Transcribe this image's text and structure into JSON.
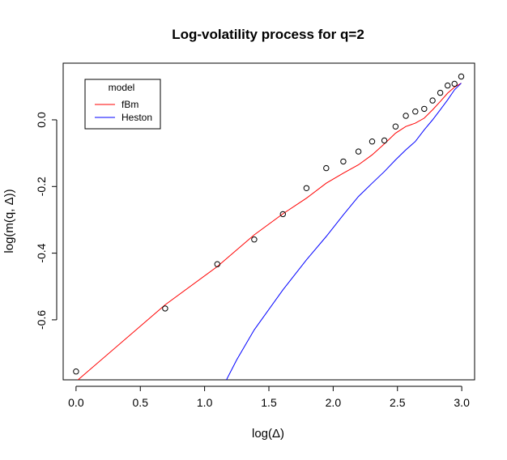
{
  "chart_data": {
    "type": "line",
    "title": "Log-volatility process for q=2",
    "xlabel": "log(Δ)",
    "ylabel": "log(m(q, Δ))",
    "xlim": [
      -0.1,
      3.1
    ],
    "ylim": [
      -0.78,
      0.17
    ],
    "xticks": [
      0.0,
      0.5,
      1.0,
      1.5,
      2.0,
      2.5,
      3.0
    ],
    "xtick_labels": [
      "0.0",
      "0.5",
      "1.0",
      "1.5",
      "2.0",
      "2.5",
      "3.0"
    ],
    "yticks": [
      -0.6,
      -0.4,
      -0.2,
      0.0
    ],
    "ytick_labels": [
      "-0.6",
      "-0.4",
      "-0.2",
      "0.0"
    ],
    "grid": false,
    "legend": {
      "title": "model",
      "position": "top-left",
      "entries": [
        {
          "label": "fBm",
          "color": "#ff0000"
        },
        {
          "label": "Heston",
          "color": "#0000ff"
        }
      ]
    },
    "points": {
      "x": [
        0.0,
        0.693,
        1.099,
        1.386,
        1.609,
        1.792,
        1.946,
        2.079,
        2.197,
        2.303,
        2.398,
        2.485,
        2.565,
        2.639,
        2.708,
        2.773,
        2.833,
        2.89,
        2.944,
        2.996
      ],
      "y": [
        -0.755,
        -0.566,
        -0.433,
        -0.359,
        -0.283,
        -0.205,
        -0.145,
        -0.125,
        -0.095,
        -0.065,
        -0.062,
        -0.02,
        0.012,
        0.025,
        0.033,
        0.058,
        0.081,
        0.103,
        0.108,
        0.13
      ]
    },
    "series": [
      {
        "name": "fBm",
        "color": "#ff0000",
        "x": [
          0.0,
          0.693,
          1.099,
          1.386,
          1.609,
          1.792,
          1.946,
          2.079,
          2.197,
          2.303,
          2.398,
          2.485,
          2.565,
          2.639,
          2.708,
          2.773,
          2.833,
          2.89,
          2.944,
          2.996
        ],
        "y": [
          -0.785,
          -0.555,
          -0.44,
          -0.345,
          -0.282,
          -0.235,
          -0.19,
          -0.16,
          -0.135,
          -0.105,
          -0.072,
          -0.04,
          -0.02,
          -0.01,
          0.005,
          0.03,
          0.055,
          0.08,
          0.098,
          0.11
        ]
      },
      {
        "name": "Heston",
        "color": "#0000ff",
        "x": [
          1.17,
          1.25,
          1.386,
          1.609,
          1.792,
          1.946,
          2.079,
          2.197,
          2.303,
          2.398,
          2.485,
          2.565,
          2.639,
          2.708,
          2.773,
          2.833,
          2.89,
          2.944,
          2.996
        ],
        "y": [
          -0.78,
          -0.72,
          -0.63,
          -0.51,
          -0.42,
          -0.35,
          -0.285,
          -0.23,
          -0.19,
          -0.155,
          -0.12,
          -0.09,
          -0.065,
          -0.03,
          0.0,
          0.03,
          0.06,
          0.09,
          0.11
        ]
      }
    ]
  }
}
